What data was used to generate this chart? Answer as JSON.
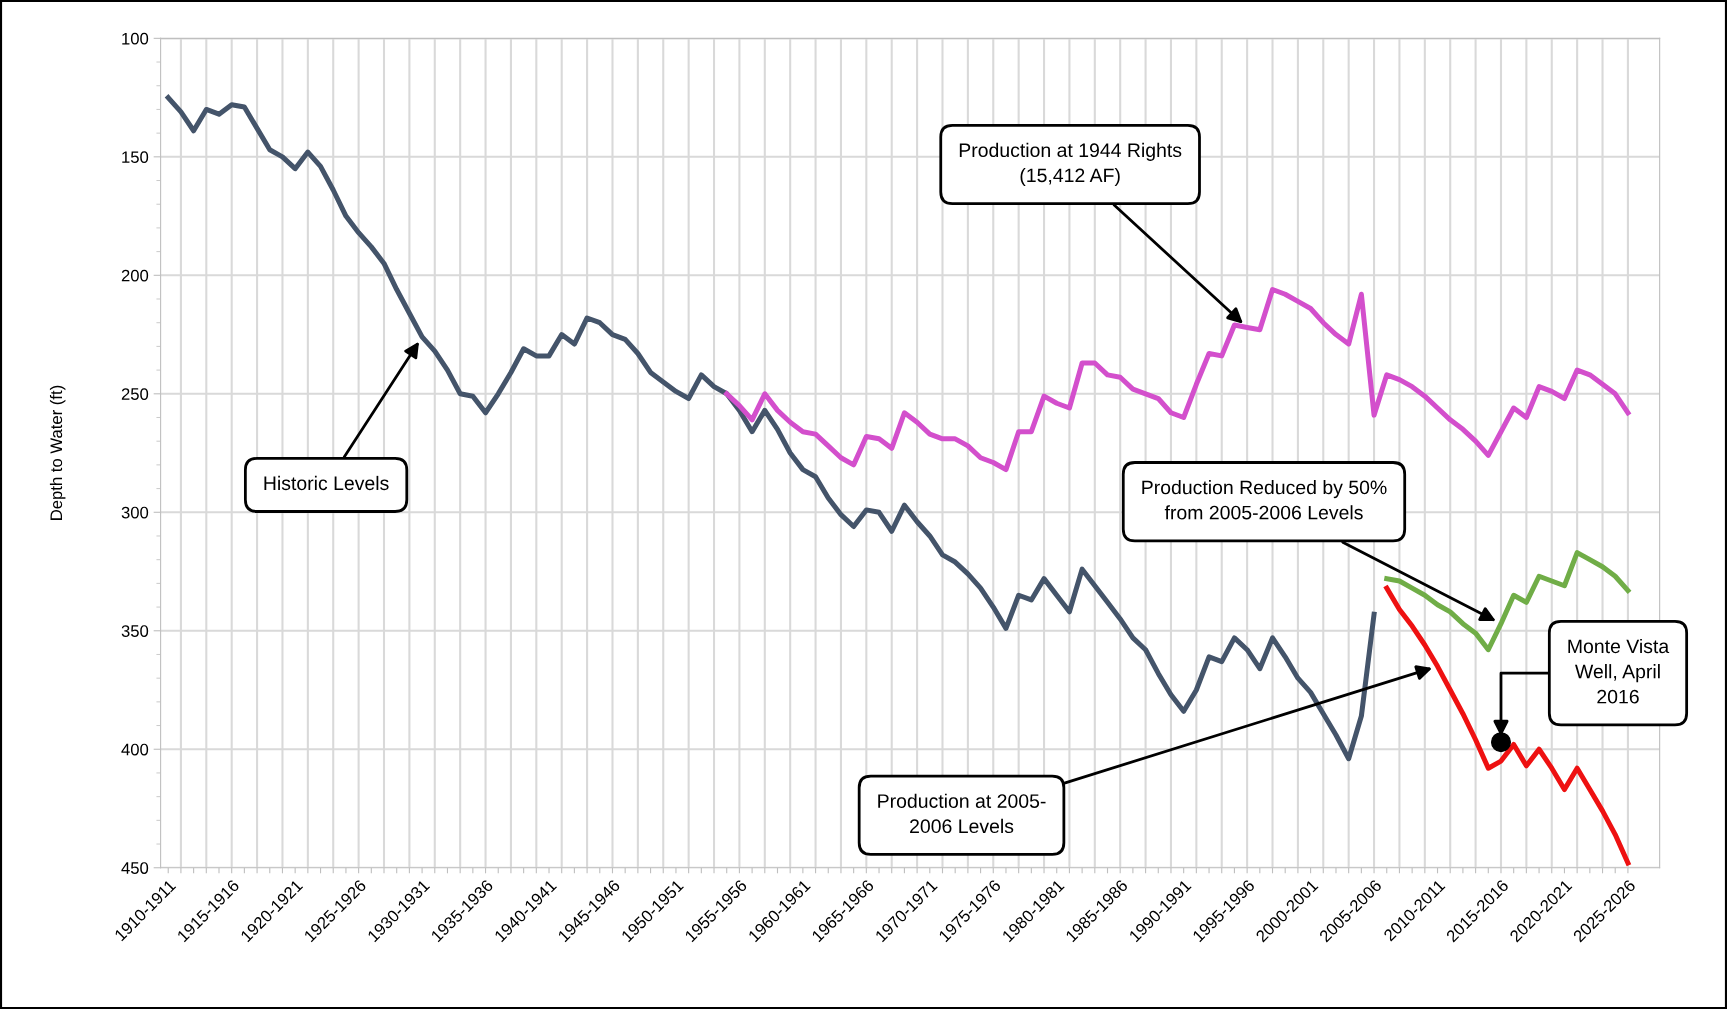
{
  "chart_data": {
    "type": "line",
    "ylabel": "Depth to Water (ft)",
    "categories": [
      "1910-1911",
      null,
      null,
      null,
      null,
      "1915-1916",
      null,
      null,
      null,
      null,
      "1920-1921",
      null,
      null,
      null,
      null,
      "1925-1926",
      null,
      null,
      null,
      null,
      "1930-1931",
      null,
      null,
      null,
      null,
      "1935-1936",
      null,
      null,
      null,
      null,
      "1940-1941",
      null,
      null,
      null,
      null,
      "1945-1946",
      null,
      null,
      null,
      null,
      "1950-1951",
      null,
      null,
      null,
      null,
      "1955-1956",
      null,
      null,
      null,
      null,
      "1960-1961",
      null,
      null,
      null,
      null,
      "1965-1966",
      null,
      null,
      null,
      null,
      "1970-1971",
      null,
      null,
      null,
      null,
      "1975-1976",
      null,
      null,
      null,
      null,
      "1980-1981",
      null,
      null,
      null,
      null,
      "1985-1986",
      null,
      null,
      null,
      null,
      "1990-1991",
      null,
      null,
      null,
      null,
      "1995-1996",
      null,
      null,
      null,
      null,
      "2000-2001",
      null,
      null,
      null,
      null,
      "2005-2006",
      null,
      null,
      null,
      null,
      "2010-2011",
      null,
      null,
      null,
      null,
      "2015-2016",
      null,
      null,
      null,
      null,
      "2020-2021",
      null,
      null,
      null,
      null,
      "2025-2026"
    ],
    "series": [
      {
        "color": "#44546a",
        "values": [
          125,
          131,
          139,
          130,
          132,
          128,
          129,
          138,
          147,
          150,
          155,
          148,
          154,
          164,
          175,
          182,
          188,
          195,
          206,
          216,
          226,
          232,
          240,
          250,
          251,
          258,
          250,
          241,
          231,
          234,
          234,
          225,
          229,
          218,
          220,
          225,
          227,
          233,
          241,
          245,
          249,
          252,
          242,
          247,
          250,
          257,
          266,
          257,
          265,
          275,
          282,
          285,
          294,
          301,
          306,
          299,
          300,
          308,
          297,
          304,
          310,
          318,
          321,
          326,
          332,
          340,
          349,
          335,
          337,
          328,
          335,
          342,
          324,
          331,
          338,
          345,
          353,
          358,
          368,
          377,
          384,
          375,
          361,
          363,
          353,
          358,
          366,
          353,
          361,
          370,
          376,
          385,
          394,
          404,
          386,
          343,
          null,
          null,
          null,
          null,
          null,
          null,
          null,
          null,
          null,
          null,
          null,
          null,
          null,
          null,
          null,
          null,
          null,
          null,
          null,
          null
        ]
      },
      {
        "color": "#d34fcc",
        "values": [
          null,
          null,
          null,
          null,
          null,
          null,
          null,
          null,
          null,
          null,
          null,
          null,
          null,
          null,
          null,
          null,
          null,
          null,
          null,
          null,
          null,
          null,
          null,
          null,
          null,
          null,
          null,
          null,
          null,
          null,
          null,
          null,
          null,
          null,
          null,
          null,
          null,
          null,
          null,
          null,
          null,
          null,
          null,
          null,
          250,
          255,
          261,
          250,
          257,
          262,
          266,
          267,
          272,
          277,
          280,
          268,
          269,
          273,
          258,
          262,
          267,
          269,
          269,
          272,
          277,
          279,
          282,
          266,
          266,
          251,
          254,
          256,
          237,
          237,
          242,
          243,
          248,
          250,
          252,
          258,
          260,
          246,
          233,
          234,
          221,
          222,
          223,
          206,
          208,
          211,
          214,
          220,
          225,
          229,
          208,
          259,
          242,
          244,
          247,
          251,
          256,
          261,
          265,
          270,
          276,
          266,
          256,
          260,
          247,
          249,
          252,
          240,
          242,
          246,
          250,
          258
        ]
      },
      {
        "color": "#70ad47",
        "values": [
          null,
          null,
          null,
          null,
          null,
          null,
          null,
          null,
          null,
          null,
          null,
          null,
          null,
          null,
          null,
          null,
          null,
          null,
          null,
          null,
          null,
          null,
          null,
          null,
          null,
          null,
          null,
          null,
          null,
          null,
          null,
          null,
          null,
          null,
          null,
          null,
          null,
          null,
          null,
          null,
          null,
          null,
          null,
          null,
          null,
          null,
          null,
          null,
          null,
          null,
          null,
          null,
          null,
          null,
          null,
          null,
          null,
          null,
          null,
          null,
          null,
          null,
          null,
          null,
          null,
          null,
          null,
          null,
          null,
          null,
          null,
          null,
          null,
          null,
          null,
          null,
          null,
          null,
          null,
          null,
          null,
          null,
          null,
          null,
          null,
          null,
          null,
          null,
          null,
          null,
          null,
          null,
          null,
          null,
          null,
          null,
          328,
          329,
          332,
          335,
          339,
          342,
          347,
          351,
          358,
          347,
          335,
          338,
          327,
          329,
          331,
          317,
          320,
          323,
          327,
          333
        ]
      },
      {
        "color": "#ee1111",
        "values": [
          null,
          null,
          null,
          null,
          null,
          null,
          null,
          null,
          null,
          null,
          null,
          null,
          null,
          null,
          null,
          null,
          null,
          null,
          null,
          null,
          null,
          null,
          null,
          null,
          null,
          null,
          null,
          null,
          null,
          null,
          null,
          null,
          null,
          null,
          null,
          null,
          null,
          null,
          null,
          null,
          null,
          null,
          null,
          null,
          null,
          null,
          null,
          null,
          null,
          null,
          null,
          null,
          null,
          null,
          null,
          null,
          null,
          null,
          null,
          null,
          null,
          null,
          null,
          null,
          null,
          null,
          null,
          null,
          null,
          null,
          null,
          null,
          null,
          null,
          null,
          null,
          null,
          null,
          null,
          null,
          null,
          null,
          null,
          null,
          null,
          null,
          null,
          null,
          null,
          null,
          null,
          null,
          null,
          null,
          null,
          null,
          332,
          341,
          348,
          356,
          365,
          375,
          385,
          396,
          408,
          405,
          398,
          407,
          400,
          408,
          417,
          408,
          417,
          426,
          436,
          448
        ]
      },
      {
        "type": "scatter",
        "color": "#000000",
        "marker": "circle",
        "x": [
          "2015-2016"
        ],
        "values": [
          397
        ]
      }
    ],
    "ylim": [
      450,
      100
    ],
    "yticks": [
      100,
      150,
      200,
      250,
      300,
      350,
      400,
      450
    ],
    "grid": true,
    "marker": "none",
    "line_style": "solid",
    "annotations": [
      {
        "text": "Historic Levels",
        "x": "1930-1931",
        "y": 226
      },
      {
        "text": "Production at 1944 Rights\n(15,412 AF)",
        "x": "1995-1996",
        "y": 222
      },
      {
        "text": "Production Reduced by 50%\nfrom 2005-2006 Levels",
        "x": "2015-2016",
        "y": 347
      },
      {
        "text": "Production at 2005-\n2006 Levels",
        "x": "2010-2011",
        "y": 365
      },
      {
        "text": "Monte Vista\nWell, April\n2016",
        "x": "2015-2016",
        "y": 397
      }
    ]
  }
}
